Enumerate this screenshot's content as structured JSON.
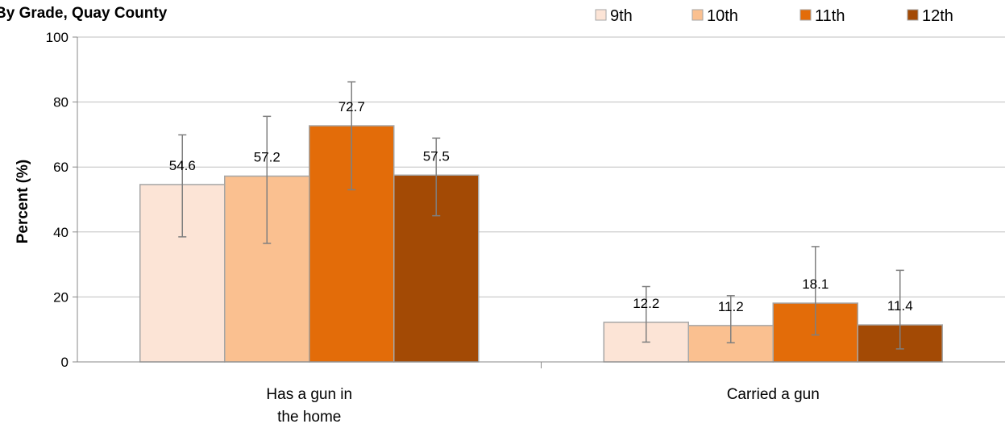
{
  "chart_data": {
    "type": "bar",
    "title": "By Grade, Quay County",
    "xlabel": "",
    "ylabel": "Percent (%)",
    "ylim": [
      0,
      100
    ],
    "yticks": [
      0,
      20,
      40,
      60,
      80,
      100
    ],
    "grid": true,
    "legend_position": "top-right",
    "categories": [
      [
        "Has a gun in",
        "the home"
      ],
      [
        "Carried a gun"
      ]
    ],
    "series": [
      {
        "name": "9th",
        "color": "#FCE4D6",
        "values": [
          54.6,
          12.2
        ],
        "error_low": [
          38.5,
          6.1
        ],
        "error_high": [
          69.9,
          23.2
        ]
      },
      {
        "name": "10th",
        "color": "#FAC090",
        "values": [
          57.2,
          11.2
        ],
        "error_low": [
          36.5,
          5.9
        ],
        "error_high": [
          75.6,
          20.4
        ]
      },
      {
        "name": "11th",
        "color": "#E36C09",
        "values": [
          72.7,
          18.1
        ],
        "error_low": [
          53.0,
          8.3
        ],
        "error_high": [
          86.2,
          35.5
        ]
      },
      {
        "name": "12th",
        "color": "#A34A05",
        "values": [
          57.5,
          11.4
        ],
        "error_low": [
          45.0,
          4.0
        ],
        "error_high": [
          68.9,
          28.2
        ]
      }
    ]
  }
}
